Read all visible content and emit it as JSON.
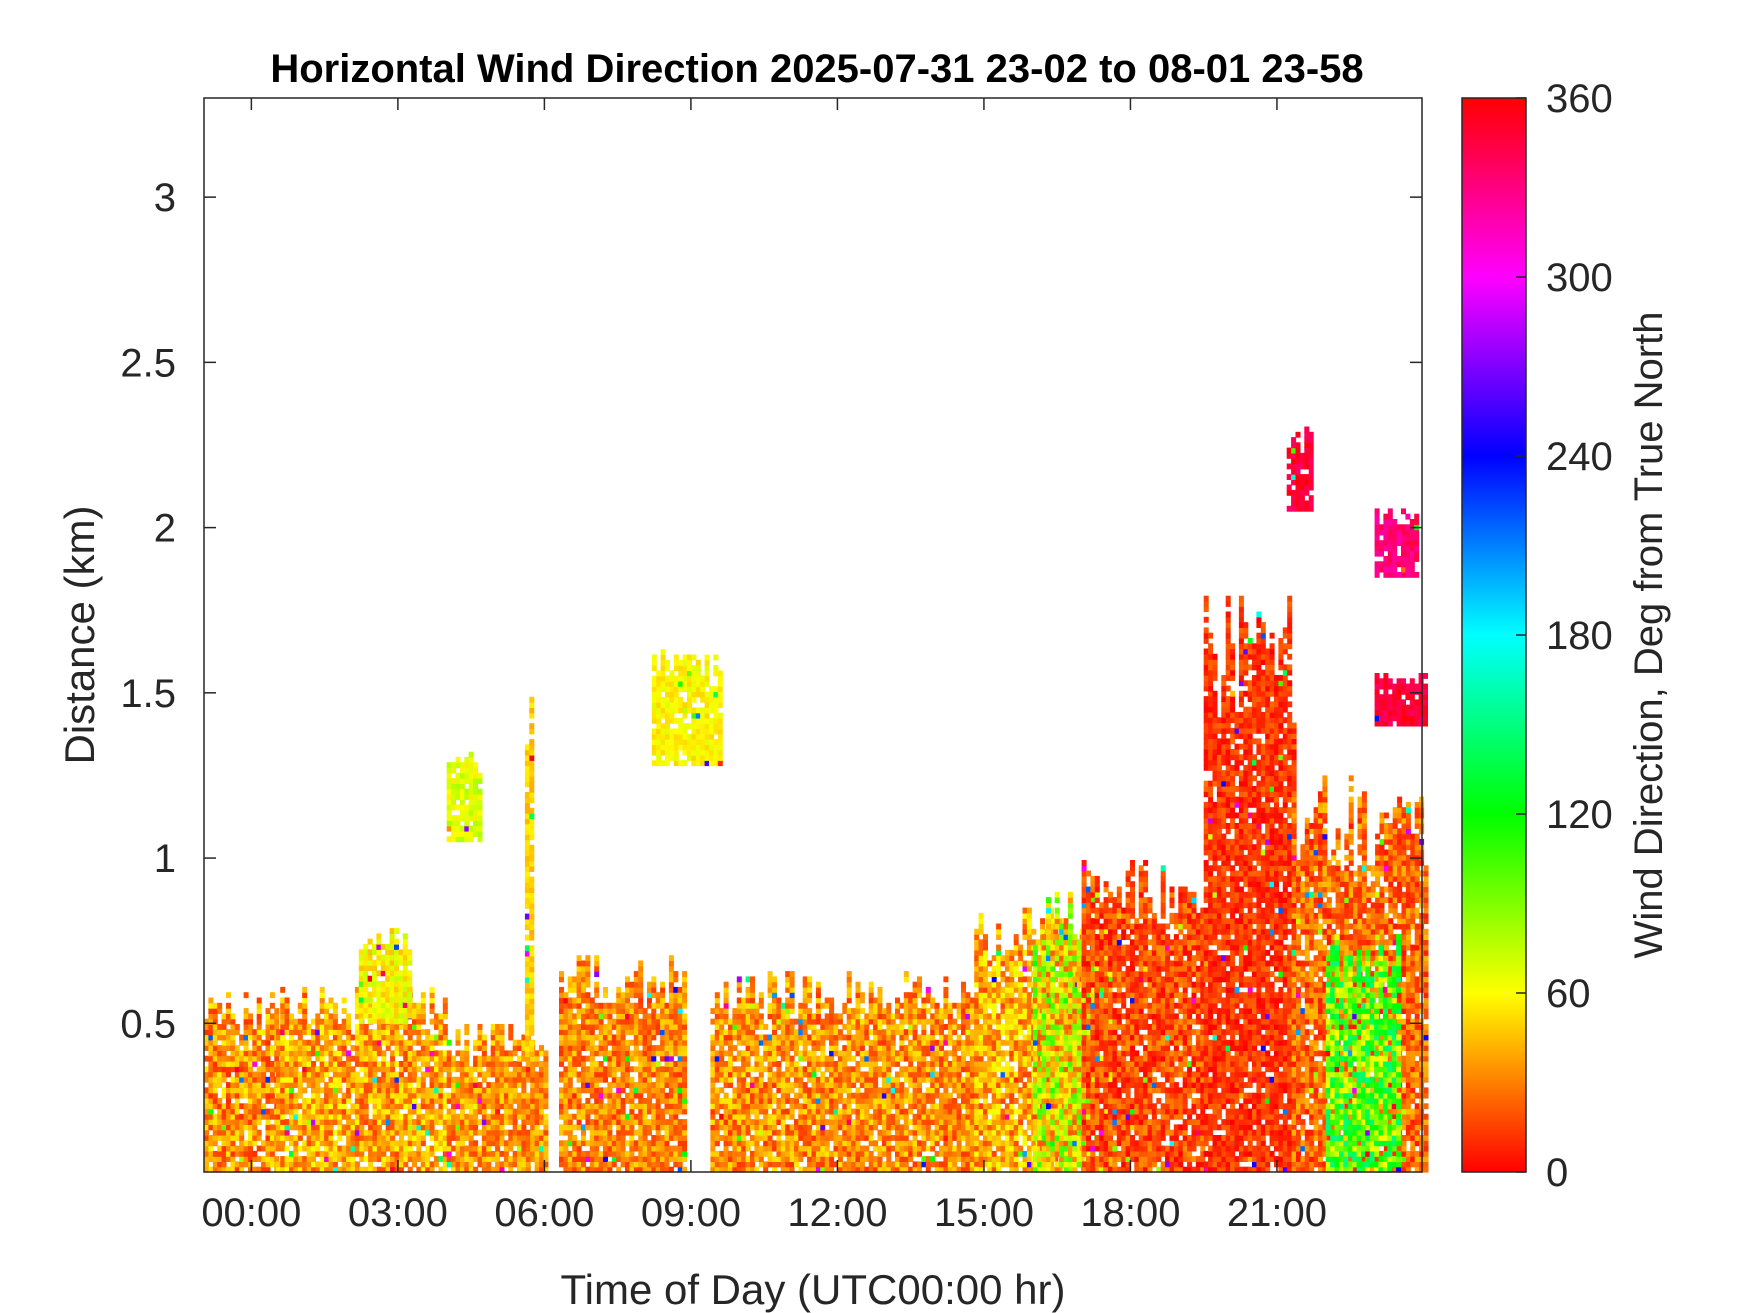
{
  "chart_data": {
    "type": "heatmap",
    "title": "Horizontal Wind Direction 2025-07-31 23-02 to 08-01 23-58",
    "xlabel": "Time of Day (UTC00:00 hr)",
    "ylabel": "Distance (km)",
    "colorbar_label": "Wind Direction, Deg from True North",
    "x_unit": "hours",
    "xlim": [
      -0.97,
      23.97
    ],
    "ylim": [
      0.05,
      3.3
    ],
    "clim": [
      0,
      360
    ],
    "x_ticks": [
      {
        "value": 0,
        "label": "00:00"
      },
      {
        "value": 3,
        "label": "03:00"
      },
      {
        "value": 6,
        "label": "06:00"
      },
      {
        "value": 9,
        "label": "09:00"
      },
      {
        "value": 12,
        "label": "12:00"
      },
      {
        "value": 15,
        "label": "15:00"
      },
      {
        "value": 18,
        "label": "18:00"
      },
      {
        "value": 21,
        "label": "21:00"
      }
    ],
    "y_ticks": [
      {
        "value": 0.5,
        "label": "0.5"
      },
      {
        "value": 1,
        "label": "1"
      },
      {
        "value": 1.5,
        "label": "1.5"
      },
      {
        "value": 2,
        "label": "2"
      },
      {
        "value": 2.5,
        "label": "2.5"
      },
      {
        "value": 3,
        "label": "3"
      }
    ],
    "colorbar_ticks": [
      {
        "value": 0,
        "label": "0"
      },
      {
        "value": 60,
        "label": "60"
      },
      {
        "value": 120,
        "label": "120"
      },
      {
        "value": 180,
        "label": "180"
      },
      {
        "value": 240,
        "label": "240"
      },
      {
        "value": 300,
        "label": "300"
      },
      {
        "value": 360,
        "label": "360"
      }
    ],
    "colormap": [
      "#ff0000",
      "#ffff00",
      "#00ff00",
      "#00ffff",
      "#0000ff",
      "#ff00ff",
      "#ff0000"
    ],
    "grid": false,
    "regions": [
      {
        "x": [
          -0.97,
          0.5
        ],
        "y": [
          0.05,
          0.6
        ],
        "dir": [
          10,
          58
        ]
      },
      {
        "x": [
          0.5,
          4.0
        ],
        "y": [
          0.05,
          0.62
        ],
        "dir": [
          15,
          62
        ]
      },
      {
        "x": [
          2.2,
          3.2
        ],
        "y": [
          0.5,
          0.78
        ],
        "dir": [
          45,
          75
        ]
      },
      {
        "x": [
          4.0,
          6.0
        ],
        "y": [
          0.05,
          0.5
        ],
        "dir": [
          15,
          55
        ]
      },
      {
        "x": [
          4.0,
          4.7
        ],
        "y": [
          1.05,
          1.35
        ],
        "dir": [
          55,
          80
        ]
      },
      {
        "x": [
          5.6,
          5.75
        ],
        "y": [
          0.4,
          1.6
        ],
        "dir": [
          40,
          58
        ]
      },
      {
        "x": [
          6.3,
          8.9
        ],
        "y": [
          0.05,
          0.7
        ],
        "dir": [
          12,
          52
        ]
      },
      {
        "x": [
          8.2,
          9.6
        ],
        "y": [
          1.28,
          1.62
        ],
        "dir": [
          50,
          68
        ]
      },
      {
        "x": [
          9.4,
          14.8
        ],
        "y": [
          0.05,
          0.66
        ],
        "dir": [
          12,
          55
        ]
      },
      {
        "x": [
          14.8,
          17.0
        ],
        "y": [
          0.05,
          0.85
        ],
        "dir": [
          15,
          65
        ]
      },
      {
        "x": [
          16.0,
          17.6
        ],
        "y": [
          0.05,
          0.9
        ],
        "dir": [
          20,
          110
        ]
      },
      {
        "x": [
          17.0,
          19.5
        ],
        "y": [
          0.05,
          1.0
        ],
        "dir": [
          0,
          35
        ]
      },
      {
        "x": [
          19.5,
          21.3
        ],
        "y": [
          0.05,
          1.8
        ],
        "dir": [
          0,
          25
        ]
      },
      {
        "x": [
          21.2,
          21.7
        ],
        "y": [
          2.05,
          2.3
        ],
        "dir": [
          335,
          360
        ]
      },
      {
        "x": [
          21.3,
          24.0
        ],
        "y": [
          0.05,
          1.25
        ],
        "dir": [
          5,
          45
        ]
      },
      {
        "x": [
          22.0,
          23.5
        ],
        "y": [
          0.05,
          0.8
        ],
        "dir": [
          60,
          150
        ]
      },
      {
        "x": [
          23.0,
          24.0
        ],
        "y": [
          1.4,
          1.55
        ],
        "dir": [
          335,
          358
        ]
      },
      {
        "x": [
          23.0,
          23.9
        ],
        "y": [
          1.85,
          2.05
        ],
        "dir": [
          320,
          345
        ]
      }
    ]
  }
}
